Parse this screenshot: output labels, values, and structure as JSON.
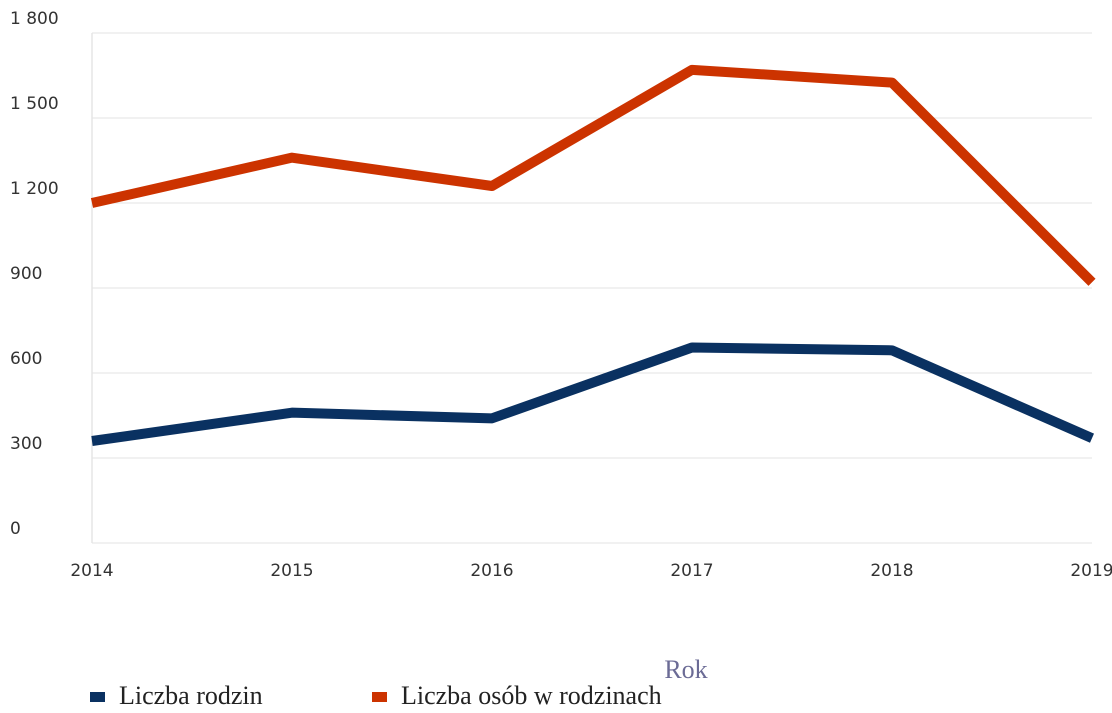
{
  "chart_data": {
    "type": "line",
    "x_label": "Rok",
    "categories": [
      "2014",
      "2015",
      "2016",
      "2017",
      "2018",
      "2019"
    ],
    "series": [
      {
        "name": "Liczba rodzin",
        "color": "#0a3161",
        "values": [
          360,
          460,
          440,
          690,
          680,
          370
        ]
      },
      {
        "name": "Liczba osób w rodzinach",
        "color": "#cc3300",
        "values": [
          1200,
          1360,
          1260,
          1670,
          1625,
          920
        ]
      }
    ],
    "ylim": [
      0,
      1800
    ],
    "yticks": [
      0,
      300,
      600,
      900,
      {
        "value": 1200,
        "label": "1 200"
      },
      {
        "value": 1500,
        "label": "1 500"
      },
      {
        "value": 1800,
        "label": "1 800"
      }
    ],
    "grid": true
  }
}
